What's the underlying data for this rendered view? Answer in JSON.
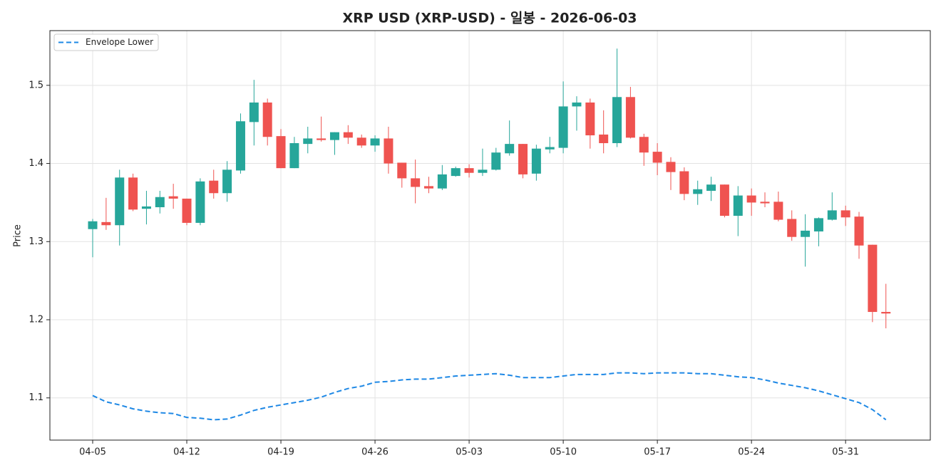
{
  "chart_data": {
    "type": "candlestick",
    "title": "XRP USD (XRP-USD) - 일봉 - 2026-06-03",
    "y_label": "Price",
    "categories": [
      "04-05",
      null,
      null,
      null,
      null,
      null,
      null,
      "04-12",
      null,
      null,
      null,
      null,
      null,
      null,
      "04-19",
      null,
      null,
      null,
      null,
      null,
      null,
      "04-26",
      null,
      null,
      null,
      null,
      null,
      null,
      "05-03",
      null,
      null,
      null,
      null,
      null,
      null,
      "05-10",
      null,
      null,
      null,
      null,
      null,
      null,
      "05-17",
      null,
      null,
      null,
      null,
      null,
      null,
      "05-24",
      null,
      null,
      null,
      null,
      null,
      null,
      "05-31",
      null,
      null,
      null
    ],
    "open": [
      1.316,
      1.325,
      1.321,
      1.382,
      1.342,
      1.344,
      1.358,
      1.355,
      1.324,
      1.378,
      1.362,
      1.391,
      1.453,
      1.478,
      1.435,
      1.394,
      1.425,
      1.432,
      1.43,
      1.44,
      1.433,
      1.423,
      1.432,
      1.401,
      1.381,
      1.371,
      1.368,
      1.384,
      1.394,
      1.388,
      1.392,
      1.413,
      1.425,
      1.387,
      1.418,
      1.42,
      1.473,
      1.478,
      1.437,
      1.426,
      1.485,
      1.434,
      1.415,
      1.402,
      1.39,
      1.361,
      1.365,
      1.373,
      1.333,
      1.359,
      1.351,
      1.351,
      1.329,
      1.306,
      1.313,
      1.328,
      1.34,
      1.332,
      1.296,
      1.21
    ],
    "high": [
      1.329,
      1.356,
      1.392,
      1.387,
      1.365,
      1.365,
      1.374,
      1.355,
      1.381,
      1.392,
      1.403,
      1.464,
      1.507,
      1.483,
      1.444,
      1.434,
      1.447,
      1.46,
      1.44,
      1.449,
      1.437,
      1.436,
      1.447,
      1.401,
      1.405,
      1.383,
      1.398,
      1.396,
      1.399,
      1.419,
      1.42,
      1.455,
      1.425,
      1.424,
      1.434,
      1.505,
      1.486,
      1.483,
      1.468,
      1.547,
      1.498,
      1.438,
      1.426,
      1.408,
      1.395,
      1.378,
      1.383,
      1.373,
      1.371,
      1.368,
      1.363,
      1.364,
      1.34,
      1.335,
      1.331,
      1.363,
      1.346,
      1.338,
      1.296,
      1.246
    ],
    "low": [
      1.28,
      1.315,
      1.295,
      1.339,
      1.322,
      1.336,
      1.342,
      1.321,
      1.321,
      1.355,
      1.351,
      1.387,
      1.423,
      1.423,
      1.394,
      1.394,
      1.413,
      1.428,
      1.411,
      1.425,
      1.42,
      1.415,
      1.387,
      1.369,
      1.349,
      1.362,
      1.366,
      1.383,
      1.382,
      1.384,
      1.391,
      1.41,
      1.381,
      1.378,
      1.413,
      1.413,
      1.442,
      1.419,
      1.413,
      1.421,
      1.432,
      1.397,
      1.385,
      1.366,
      1.353,
      1.347,
      1.352,
      1.331,
      1.307,
      1.333,
      1.344,
      1.326,
      1.301,
      1.268,
      1.294,
      1.327,
      1.32,
      1.278,
      1.197,
      1.189
    ],
    "close": [
      1.326,
      1.321,
      1.382,
      1.341,
      1.345,
      1.357,
      1.355,
      1.324,
      1.377,
      1.362,
      1.392,
      1.454,
      1.478,
      1.434,
      1.394,
      1.426,
      1.432,
      1.43,
      1.44,
      1.433,
      1.423,
      1.432,
      1.4,
      1.381,
      1.37,
      1.368,
      1.386,
      1.394,
      1.388,
      1.392,
      1.414,
      1.425,
      1.386,
      1.419,
      1.421,
      1.473,
      1.478,
      1.436,
      1.426,
      1.485,
      1.433,
      1.414,
      1.401,
      1.389,
      1.361,
      1.367,
      1.373,
      1.333,
      1.359,
      1.35,
      1.349,
      1.328,
      1.306,
      1.314,
      1.33,
      1.34,
      1.331,
      1.295,
      1.21,
      1.208
    ],
    "up_color": "#26a69a",
    "down_color": "#ef5350",
    "series": [
      {
        "name": "Envelope Lower",
        "color": "#1e88e5",
        "dashed": true,
        "values": [
          1.103,
          1.095,
          1.091,
          1.086,
          1.083,
          1.081,
          1.08,
          1.075,
          1.074,
          1.072,
          1.073,
          1.078,
          1.084,
          1.088,
          1.091,
          1.094,
          1.097,
          1.101,
          1.107,
          1.112,
          1.115,
          1.12,
          1.121,
          1.123,
          1.124,
          1.124,
          1.126,
          1.128,
          1.129,
          1.13,
          1.131,
          1.129,
          1.126,
          1.126,
          1.126,
          1.128,
          1.13,
          1.13,
          1.13,
          1.132,
          1.132,
          1.131,
          1.132,
          1.132,
          1.132,
          1.131,
          1.131,
          1.129,
          1.127,
          1.126,
          1.123,
          1.119,
          1.116,
          1.113,
          1.109,
          1.104,
          1.099,
          1.094,
          1.085,
          1.072
        ]
      }
    ],
    "ylim": [
      1.046,
      1.57
    ],
    "yticks": [
      1.1,
      1.2,
      1.3,
      1.4,
      1.5
    ],
    "grid": true,
    "legend": "upper left"
  }
}
